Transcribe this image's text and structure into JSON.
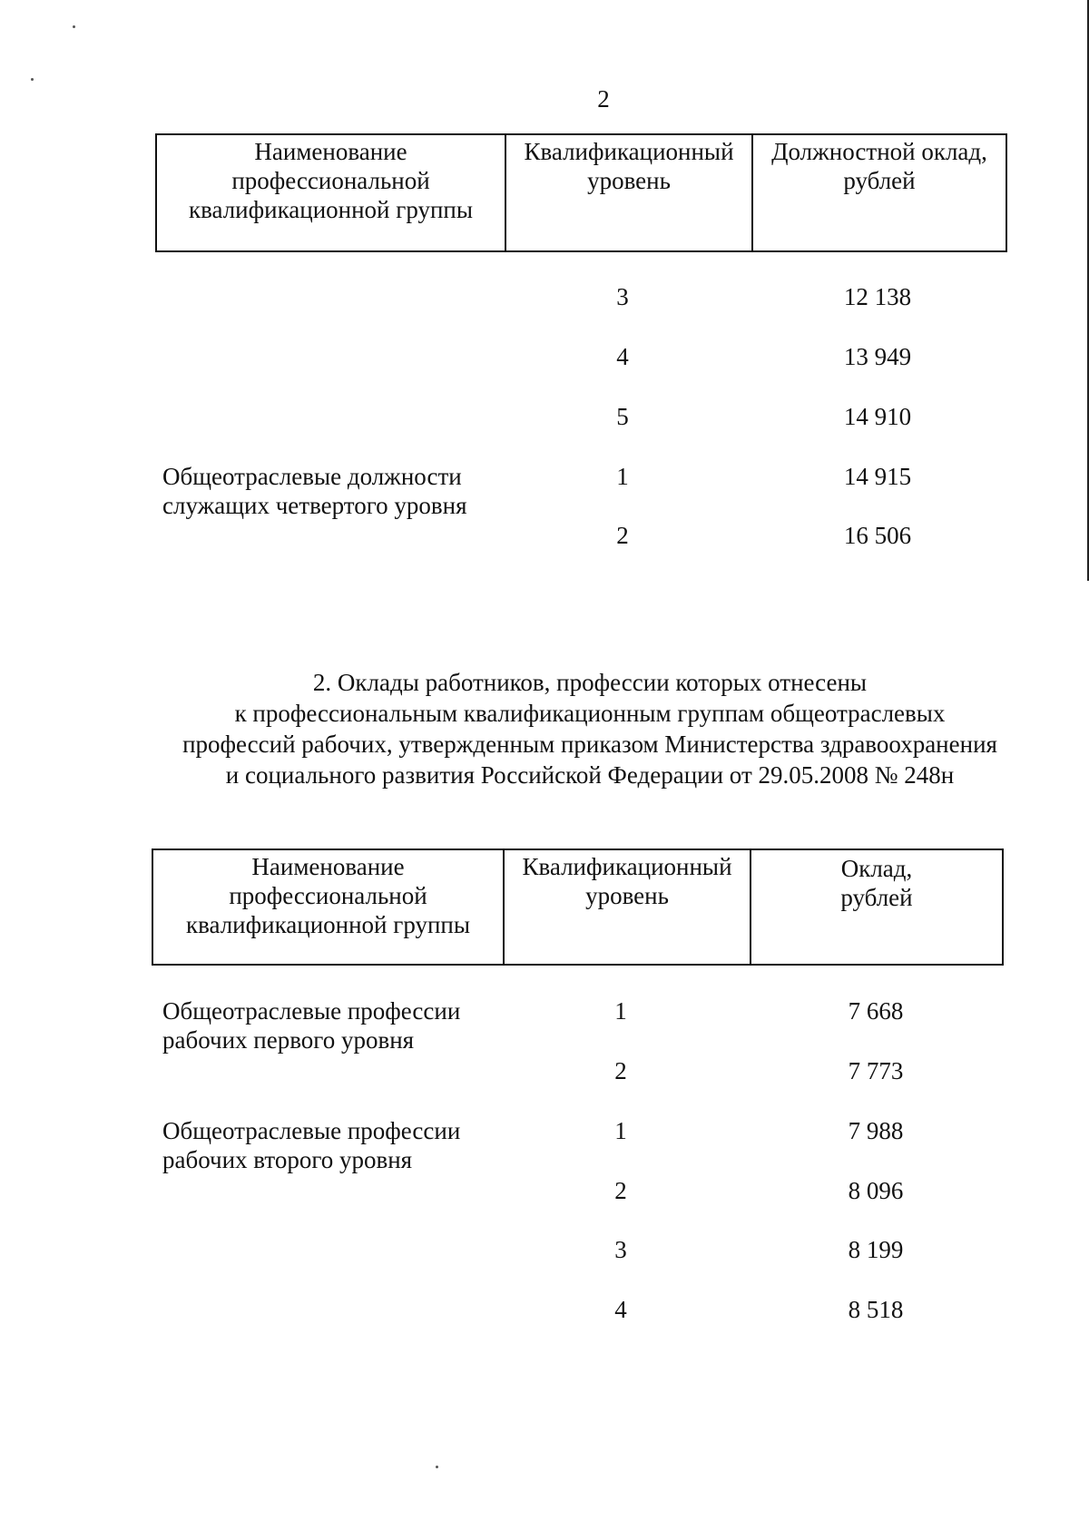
{
  "page_number": "2",
  "table1": {
    "headers": [
      "Наименование профессиональной квалификационной группы",
      "Квалификационный уровень",
      "Должностной оклад, рублей"
    ],
    "rows": [
      {
        "group": "",
        "level": "3",
        "salary": "12 138"
      },
      {
        "group": "",
        "level": "4",
        "salary": "13 949"
      },
      {
        "group": "",
        "level": "5",
        "salary": "14 910"
      },
      {
        "group": "Общеотраслевые должности служащих четвертого уровня",
        "level": "1",
        "salary": "14 915"
      },
      {
        "group": "",
        "level": "2",
        "salary": "16 506"
      }
    ]
  },
  "section2": {
    "heading_lines": [
      "2. Оклады работников, профессии которых отнесены",
      "к профессиональным квалификационным группам общеотраслевых",
      "профессий рабочих, утвержденным приказом Министерства здравоохранения",
      "и социального развития Российской Федерации от 29.05.2008 № 248н"
    ]
  },
  "table2": {
    "headers": [
      "Наименование профессиональной квалификационной группы",
      "Квалификационный уровень",
      "Оклад, рублей"
    ],
    "rows": [
      {
        "group": "Общеотраслевые профессии рабочих первого уровня",
        "level": "1",
        "salary": "7 668"
      },
      {
        "group": "",
        "level": "2",
        "salary": "7 773"
      },
      {
        "group": "Общеотраслевые профессии рабочих второго уровня",
        "level": "1",
        "salary": "7 988"
      },
      {
        "group": "",
        "level": "2",
        "salary": "8 096"
      },
      {
        "group": "",
        "level": "3",
        "salary": "8 199"
      },
      {
        "group": "",
        "level": "4",
        "salary": "8 518"
      }
    ]
  }
}
